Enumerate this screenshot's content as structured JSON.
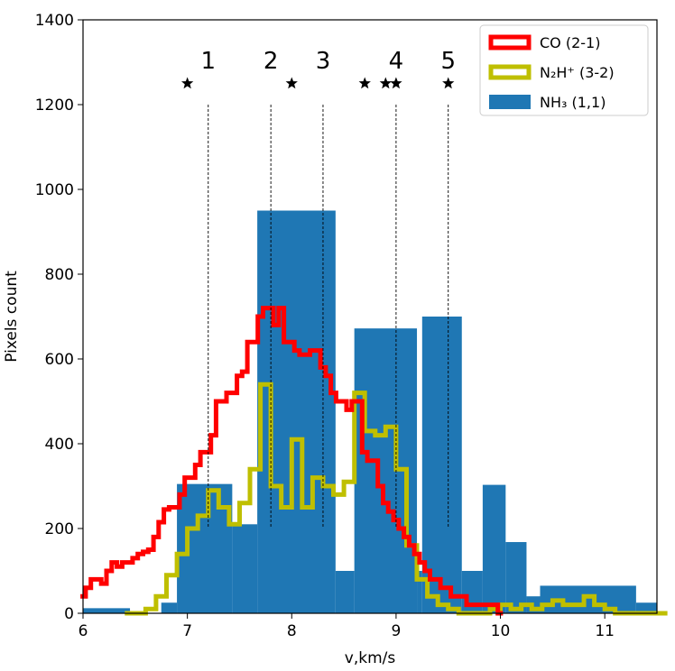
{
  "chart_data": {
    "type": "histogram",
    "xlabel": "v,km/s",
    "ylabel": "Pixels count",
    "xlim": [
      6,
      11.5
    ],
    "ylim": [
      0,
      1400
    ],
    "xticks": [
      "6",
      "7",
      "8",
      "9",
      "10",
      "11"
    ],
    "yticks": [
      "0",
      "200",
      "400",
      "600",
      "800",
      "1000",
      "1200",
      "1400"
    ],
    "grid": false,
    "legend_position": "top-right",
    "nh3_bars": {
      "name": "NH3 (1,1)",
      "color": "#1f77b4",
      "bins": [
        {
          "x0": 6.0,
          "x1": 6.45,
          "y": 12
        },
        {
          "x0": 6.45,
          "x1": 6.75,
          "y": 0
        },
        {
          "x0": 6.75,
          "x1": 6.9,
          "y": 25
        },
        {
          "x0": 6.9,
          "x1": 7.43,
          "y": 305
        },
        {
          "x0": 7.43,
          "x1": 7.67,
          "y": 210
        },
        {
          "x0": 7.67,
          "x1": 8.42,
          "y": 950
        },
        {
          "x0": 8.42,
          "x1": 8.6,
          "y": 100
        },
        {
          "x0": 8.6,
          "x1": 9.2,
          "y": 672
        },
        {
          "x0": 9.2,
          "x1": 9.25,
          "y": 100
        },
        {
          "x0": 9.25,
          "x1": 9.63,
          "y": 700
        },
        {
          "x0": 9.63,
          "x1": 9.83,
          "y": 100
        },
        {
          "x0": 9.83,
          "x1": 10.05,
          "y": 303
        },
        {
          "x0": 10.05,
          "x1": 10.25,
          "y": 168
        },
        {
          "x0": 10.25,
          "x1": 10.38,
          "y": 40
        },
        {
          "x0": 10.38,
          "x1": 11.3,
          "y": 65
        },
        {
          "x0": 11.3,
          "x1": 11.55,
          "y": 25
        }
      ]
    },
    "co_series": {
      "name": "CO (2-1)",
      "color": "#ff0000",
      "x": [
        6.0,
        6.05,
        6.1,
        6.15,
        6.2,
        6.25,
        6.3,
        6.35,
        6.4,
        6.45,
        6.5,
        6.55,
        6.6,
        6.65,
        6.7,
        6.75,
        6.8,
        6.85,
        6.9,
        6.95,
        7.0,
        7.05,
        7.1,
        7.15,
        7.2,
        7.25,
        7.3,
        7.35,
        7.4,
        7.45,
        7.5,
        7.55,
        7.6,
        7.65,
        7.7,
        7.75,
        7.8,
        7.85,
        7.9,
        7.95,
        8.0,
        8.05,
        8.1,
        8.15,
        8.2,
        8.25,
        8.3,
        8.35,
        8.4,
        8.45,
        8.5,
        8.55,
        8.6,
        8.65,
        8.7,
        8.75,
        8.8,
        8.85,
        8.9,
        8.95,
        9.0,
        9.05,
        9.1,
        9.15,
        9.2,
        9.25,
        9.3,
        9.35,
        9.4,
        9.45,
        9.5,
        9.55,
        9.6,
        9.65,
        9.7,
        9.75,
        9.8,
        9.85,
        9.9,
        9.95,
        10.0
      ],
      "y": [
        40,
        60,
        80,
        80,
        70,
        100,
        120,
        110,
        120,
        120,
        130,
        140,
        145,
        150,
        180,
        215,
        245,
        250,
        250,
        280,
        320,
        320,
        350,
        380,
        380,
        420,
        500,
        500,
        520,
        520,
        560,
        570,
        640,
        640,
        700,
        720,
        720,
        680,
        720,
        640,
        640,
        620,
        610,
        610,
        620,
        620,
        580,
        560,
        520,
        500,
        500,
        480,
        500,
        500,
        380,
        360,
        360,
        300,
        260,
        240,
        220,
        200,
        180,
        160,
        140,
        120,
        100,
        80,
        80,
        60,
        60,
        40,
        40,
        40,
        20,
        20,
        20,
        20,
        20,
        20,
        0
      ]
    },
    "n2h_series": {
      "name": "N2H+ (3-2)",
      "color": "#bfbf00",
      "x": [
        6.45,
        6.55,
        6.65,
        6.75,
        6.85,
        6.95,
        7.05,
        7.15,
        7.25,
        7.35,
        7.45,
        7.55,
        7.65,
        7.75,
        7.85,
        7.95,
        8.05,
        8.15,
        8.25,
        8.35,
        8.45,
        8.55,
        8.65,
        8.75,
        8.85,
        8.95,
        9.05,
        9.15,
        9.25,
        9.35,
        9.45,
        9.55,
        9.65,
        9.75,
        9.85,
        9.95,
        10.05,
        10.15,
        10.25,
        10.35,
        10.45,
        10.55,
        10.65,
        10.75,
        10.85,
        10.95,
        11.05,
        11.15,
        11.25,
        11.35,
        11.45,
        11.55
      ],
      "y": [
        0,
        0,
        10,
        40,
        90,
        140,
        200,
        230,
        290,
        250,
        210,
        260,
        340,
        540,
        300,
        250,
        410,
        250,
        320,
        300,
        280,
        310,
        520,
        430,
        420,
        440,
        340,
        160,
        80,
        40,
        20,
        10,
        0,
        0,
        0,
        10,
        20,
        10,
        20,
        10,
        20,
        30,
        20,
        20,
        40,
        20,
        10,
        0,
        0,
        0,
        0,
        0
      ]
    },
    "annotations": {
      "numbers": [
        {
          "label": "1",
          "x": 7.2
        },
        {
          "label": "2",
          "x": 7.8
        },
        {
          "label": "3",
          "x": 8.3
        },
        {
          "label": "4",
          "x": 9.0
        },
        {
          "label": "5",
          "x": 9.5
        }
      ],
      "star_x": [
        7.0,
        8.0,
        8.7,
        8.9,
        9.0,
        9.5
      ],
      "star_y": 1250,
      "dashed_lines_x": [
        7.2,
        7.8,
        8.3,
        9.0,
        9.5
      ],
      "dashed_y_range": [
        200,
        1200
      ],
      "number_y": 1285
    },
    "legend": [
      {
        "label": "CO (2-1)",
        "kind": "co"
      },
      {
        "label": "N₂H⁺ (3-2)",
        "kind": "n2h"
      },
      {
        "label": "NH₃ (1,1)",
        "kind": "nh3"
      }
    ]
  }
}
